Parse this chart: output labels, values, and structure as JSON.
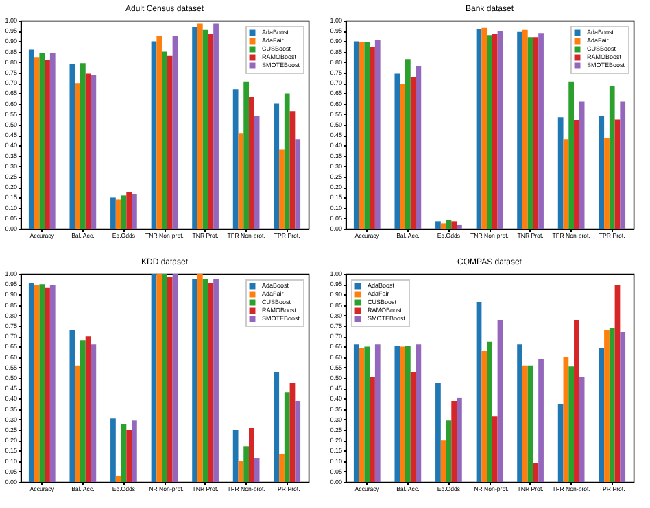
{
  "chart_data": [
    {
      "type": "bar",
      "title": "Adult Census dataset",
      "categories": [
        "Accuracy",
        "Bal. Acc.",
        "Eq.Odds",
        "TNR Non-prot.",
        "TNR Prot.",
        "TPR Non-prot.",
        "TPR Prot."
      ],
      "ylim": [
        0,
        1
      ],
      "yticks": [
        {
          "value": 0,
          "label": "0.00"
        },
        {
          "value": 0.05,
          "label": "0.05"
        },
        {
          "value": 0.1,
          "label": "0.10"
        },
        {
          "value": 0.15,
          "label": "0.15"
        },
        {
          "value": 0.2,
          "label": "0.20"
        },
        {
          "value": 0.25,
          "label": "0.25"
        },
        {
          "value": 0.3,
          "label": "0.30"
        },
        {
          "value": 0.35,
          "label": "0.35"
        },
        {
          "value": 0.4,
          "label": "0.40"
        },
        {
          "value": 0.45,
          "label": "0.45"
        },
        {
          "value": 0.5,
          "label": "0.50"
        },
        {
          "value": 0.55,
          "label": "0.55"
        },
        {
          "value": 0.6,
          "label": "0.60"
        },
        {
          "value": 0.65,
          "label": "0.65"
        },
        {
          "value": 0.7,
          "label": "0.70"
        },
        {
          "value": 0.75,
          "label": "0.75"
        },
        {
          "value": 0.8,
          "label": "0.80"
        },
        {
          "value": 0.85,
          "label": "0.85"
        },
        {
          "value": 0.9,
          "label": "0.90"
        },
        {
          "value": 0.95,
          "label": "0.95"
        },
        {
          "value": 1,
          "label": "1.00"
        }
      ],
      "legend": "top right",
      "series": [
        {
          "name": "AdaBoost",
          "color": "#1f77b4",
          "values": [
            0.86,
            0.79,
            0.15,
            0.9,
            0.97,
            0.67,
            0.6
          ]
        },
        {
          "name": "AdaFair",
          "color": "#ff7f0e",
          "values": [
            0.825,
            0.7,
            0.14,
            0.925,
            0.985,
            0.46,
            0.38
          ]
        },
        {
          "name": "CUSBoost",
          "color": "#2ca02c",
          "values": [
            0.845,
            0.795,
            0.16,
            0.85,
            0.955,
            0.705,
            0.65
          ]
        },
        {
          "name": "RAMOBoost",
          "color": "#d62728",
          "values": [
            0.81,
            0.745,
            0.175,
            0.83,
            0.935,
            0.635,
            0.565
          ]
        },
        {
          "name": "SMOTEBoost",
          "color": "#9467bd",
          "values": [
            0.845,
            0.74,
            0.165,
            0.925,
            0.985,
            0.54,
            0.43
          ]
        }
      ]
    },
    {
      "type": "bar",
      "title": "Bank dataset",
      "categories": [
        "Accuracy",
        "Bal. Acc.",
        "Eq.Odds",
        "TNR Non-prot.",
        "TNR Prot.",
        "TPR Non-prot.",
        "TPR Prot."
      ],
      "ylim": [
        0,
        1
      ],
      "yticks": [
        {
          "value": 0,
          "label": "0.00"
        },
        {
          "value": 0.05,
          "label": "0.05"
        },
        {
          "value": 0.1,
          "label": "0.10"
        },
        {
          "value": 0.15,
          "label": "0.15"
        },
        {
          "value": 0.2,
          "label": "0.20"
        },
        {
          "value": 0.25,
          "label": "0.25"
        },
        {
          "value": 0.3,
          "label": "0.30"
        },
        {
          "value": 0.35,
          "label": "0.35"
        },
        {
          "value": 0.4,
          "label": "0.40"
        },
        {
          "value": 0.45,
          "label": "0.45"
        },
        {
          "value": 0.5,
          "label": "0.50"
        },
        {
          "value": 0.55,
          "label": "0.55"
        },
        {
          "value": 0.6,
          "label": "0.60"
        },
        {
          "value": 0.65,
          "label": "0.65"
        },
        {
          "value": 0.7,
          "label": "0.70"
        },
        {
          "value": 0.75,
          "label": "0.75"
        },
        {
          "value": 0.8,
          "label": "0.80"
        },
        {
          "value": 0.85,
          "label": "0.85"
        },
        {
          "value": 0.9,
          "label": "0.90"
        },
        {
          "value": 0.95,
          "label": "0.95"
        },
        {
          "value": 1,
          "label": "1.00"
        }
      ],
      "legend": "top right",
      "series": [
        {
          "name": "AdaBoost",
          "color": "#1f77b4",
          "values": [
            0.9,
            0.745,
            0.035,
            0.96,
            0.945,
            0.535,
            0.54
          ]
        },
        {
          "name": "AdaFair",
          "color": "#ff7f0e",
          "values": [
            0.895,
            0.695,
            0.025,
            0.965,
            0.955,
            0.43,
            0.435
          ]
        },
        {
          "name": "CUSBoost",
          "color": "#2ca02c",
          "values": [
            0.895,
            0.815,
            0.04,
            0.93,
            0.92,
            0.705,
            0.685
          ]
        },
        {
          "name": "RAMOBoost",
          "color": "#d62728",
          "values": [
            0.875,
            0.73,
            0.035,
            0.935,
            0.92,
            0.52,
            0.525
          ]
        },
        {
          "name": "SMOTEBoost",
          "color": "#9467bd",
          "values": [
            0.905,
            0.78,
            0.02,
            0.95,
            0.94,
            0.61,
            0.61
          ]
        }
      ]
    },
    {
      "type": "bar",
      "title": "KDD dataset",
      "categories": [
        "Accuracy",
        "Bal. Acc.",
        "Eq.Odds",
        "TNR Non-prot.",
        "TNR Prot.",
        "TPR Non-prot.",
        "TPR Prot."
      ],
      "ylim": [
        0,
        1
      ],
      "yticks": [
        {
          "value": 0,
          "label": "0.00"
        },
        {
          "value": 0.05,
          "label": "0.05"
        },
        {
          "value": 0.1,
          "label": "0.10"
        },
        {
          "value": 0.15,
          "label": "0.15"
        },
        {
          "value": 0.2,
          "label": "0.20"
        },
        {
          "value": 0.25,
          "label": "0.25"
        },
        {
          "value": 0.3,
          "label": "0.30"
        },
        {
          "value": 0.35,
          "label": "0.35"
        },
        {
          "value": 0.4,
          "label": "0.40"
        },
        {
          "value": 0.45,
          "label": "0.45"
        },
        {
          "value": 0.5,
          "label": "0.50"
        },
        {
          "value": 0.55,
          "label": "0.55"
        },
        {
          "value": 0.6,
          "label": "0.60"
        },
        {
          "value": 0.65,
          "label": "0.65"
        },
        {
          "value": 0.7,
          "label": "0.70"
        },
        {
          "value": 0.75,
          "label": "0.75"
        },
        {
          "value": 0.8,
          "label": "0.80"
        },
        {
          "value": 0.85,
          "label": "0.85"
        },
        {
          "value": 0.9,
          "label": "0.90"
        },
        {
          "value": 0.95,
          "label": "0.95"
        },
        {
          "value": 1,
          "label": "1.00"
        }
      ],
      "legend": "top right",
      "series": [
        {
          "name": "AdaBoost",
          "color": "#1f77b4",
          "values": [
            0.955,
            0.73,
            0.305,
            1.0,
            0.975,
            0.25,
            0.53
          ]
        },
        {
          "name": "AdaFair",
          "color": "#ff7f0e",
          "values": [
            0.945,
            0.56,
            0.03,
            1.0,
            1.0,
            0.1,
            0.135
          ]
        },
        {
          "name": "CUSBoost",
          "color": "#2ca02c",
          "values": [
            0.95,
            0.68,
            0.28,
            1.0,
            0.975,
            0.17,
            0.43
          ]
        },
        {
          "name": "RAMOBoost",
          "color": "#d62728",
          "values": [
            0.935,
            0.7,
            0.25,
            0.985,
            0.955,
            0.26,
            0.475
          ]
        },
        {
          "name": "SMOTEBoost",
          "color": "#9467bd",
          "values": [
            0.945,
            0.66,
            0.295,
            1.0,
            0.975,
            0.115,
            0.39
          ]
        }
      ]
    },
    {
      "type": "bar",
      "title": "COMPAS dataset",
      "categories": [
        "Accuracy",
        "Bal. Acc.",
        "Eq.Odds",
        "TNR Non-prot.",
        "TNR Prot.",
        "TPR Non-prot.",
        "TPR Prot."
      ],
      "ylim": [
        0,
        1
      ],
      "yticks": [
        {
          "value": 0,
          "label": "0.00"
        },
        {
          "value": 0.05,
          "label": "0.05"
        },
        {
          "value": 0.1,
          "label": "0.10"
        },
        {
          "value": 0.15,
          "label": "0.15"
        },
        {
          "value": 0.2,
          "label": "0.20"
        },
        {
          "value": 0.25,
          "label": "0.25"
        },
        {
          "value": 0.3,
          "label": "0.30"
        },
        {
          "value": 0.35,
          "label": "0.35"
        },
        {
          "value": 0.4,
          "label": "0.40"
        },
        {
          "value": 0.45,
          "label": "0.45"
        },
        {
          "value": 0.5,
          "label": "0.50"
        },
        {
          "value": 0.55,
          "label": "0.55"
        },
        {
          "value": 0.6,
          "label": "0.60"
        },
        {
          "value": 0.65,
          "label": "0.65"
        },
        {
          "value": 0.7,
          "label": "0.70"
        },
        {
          "value": 0.75,
          "label": "0.75"
        },
        {
          "value": 0.8,
          "label": "0.80"
        },
        {
          "value": 0.85,
          "label": "0.85"
        },
        {
          "value": 0.9,
          "label": "0.90"
        },
        {
          "value": 0.95,
          "label": "0.95"
        },
        {
          "value": 1,
          "label": "1.00"
        }
      ],
      "legend": "top left",
      "series": [
        {
          "name": "AdaBoost",
          "color": "#1f77b4",
          "values": [
            0.66,
            0.655,
            0.475,
            0.865,
            0.66,
            0.375,
            0.645
          ]
        },
        {
          "name": "AdaFair",
          "color": "#ff7f0e",
          "values": [
            0.645,
            0.65,
            0.2,
            0.63,
            0.56,
            0.6,
            0.73
          ]
        },
        {
          "name": "CUSBoost",
          "color": "#2ca02c",
          "values": [
            0.65,
            0.655,
            0.295,
            0.675,
            0.56,
            0.555,
            0.74
          ]
        },
        {
          "name": "RAMOBoost",
          "color": "#d62728",
          "values": [
            0.505,
            0.53,
            0.39,
            0.315,
            0.09,
            0.78,
            0.945
          ]
        },
        {
          "name": "SMOTEBoost",
          "color": "#9467bd",
          "values": [
            0.66,
            0.66,
            0.405,
            0.78,
            0.59,
            0.505,
            0.72
          ]
        }
      ]
    }
  ]
}
